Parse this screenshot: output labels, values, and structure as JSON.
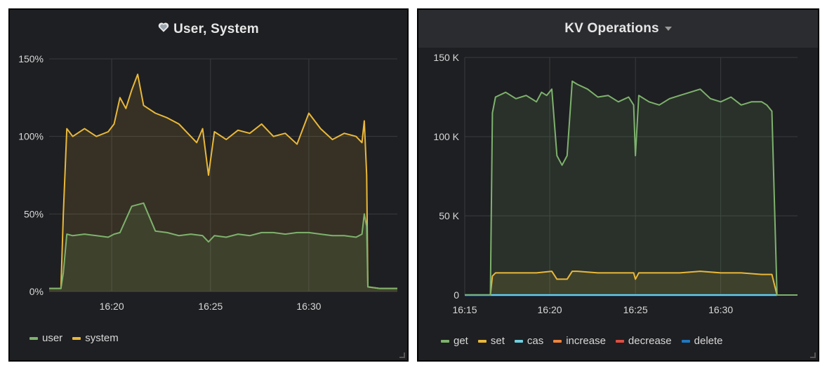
{
  "panels": {
    "left": {
      "title": "User, System",
      "legend": [
        {
          "name": "user",
          "color": "#7eb26d"
        },
        {
          "name": "system",
          "color": "#eab839"
        }
      ]
    },
    "right": {
      "title": "KV Operations",
      "legend": [
        {
          "name": "get",
          "color": "#7eb26d"
        },
        {
          "name": "set",
          "color": "#eab839"
        },
        {
          "name": "cas",
          "color": "#6ed0e0"
        },
        {
          "name": "increase",
          "color": "#ef843c"
        },
        {
          "name": "decrease",
          "color": "#e24d42"
        },
        {
          "name": "delete",
          "color": "#1f78c1"
        }
      ]
    }
  },
  "chart_data": [
    {
      "type": "area",
      "title": "User, System",
      "x_unit": "minutes",
      "xlim": [
        16.28,
        16.575
      ],
      "ylim": [
        0,
        150
      ],
      "yticks": [
        "0%",
        "50%",
        "100%",
        "150%"
      ],
      "ytick_values": [
        0,
        50,
        100,
        150
      ],
      "xticks": [
        "16:20",
        "16:25",
        "16:30"
      ],
      "xtick_values": [
        16.333,
        16.4167,
        16.5
      ],
      "grid": true,
      "legend_position": "bottom-left",
      "series": [
        {
          "name": "user",
          "color": "#7eb26d",
          "x": [
            16.28,
            16.29,
            16.292,
            16.295,
            16.3,
            16.31,
            16.32,
            16.33,
            16.335,
            16.34,
            16.35,
            16.36,
            16.37,
            16.38,
            16.39,
            16.4,
            16.41,
            16.415,
            16.42,
            16.43,
            16.44,
            16.45,
            16.46,
            16.47,
            16.48,
            16.49,
            16.5,
            16.51,
            16.52,
            16.53,
            16.54,
            16.545,
            16.547,
            16.549,
            16.55,
            16.56,
            16.575
          ],
          "y": [
            2,
            2,
            12,
            37,
            36,
            37,
            36,
            35,
            37,
            38,
            55,
            57,
            39,
            38,
            36,
            37,
            36,
            32,
            36,
            35,
            37,
            36,
            38,
            38,
            37,
            38,
            38,
            37,
            36,
            36,
            35,
            37,
            50,
            42,
            3,
            2,
            2
          ]
        },
        {
          "name": "system",
          "color": "#eab839",
          "x": [
            16.28,
            16.29,
            16.292,
            16.295,
            16.3,
            16.31,
            16.32,
            16.33,
            16.335,
            16.34,
            16.345,
            16.35,
            16.355,
            16.36,
            16.37,
            16.38,
            16.39,
            16.4,
            16.405,
            16.41,
            16.415,
            16.42,
            16.43,
            16.44,
            16.45,
            16.46,
            16.47,
            16.48,
            16.49,
            16.5,
            16.51,
            16.52,
            16.53,
            16.54,
            16.545,
            16.547,
            16.549,
            16.55,
            16.56,
            16.575
          ],
          "y": [
            2,
            2,
            50,
            105,
            100,
            105,
            100,
            103,
            108,
            125,
            118,
            130,
            140,
            120,
            115,
            112,
            108,
            100,
            96,
            105,
            75,
            103,
            98,
            104,
            102,
            108,
            100,
            102,
            95,
            115,
            105,
            98,
            102,
            100,
            96,
            110,
            75,
            3,
            2,
            2
          ]
        }
      ]
    },
    {
      "type": "area",
      "title": "KV Operations",
      "x_unit": "minutes",
      "xlim": [
        16.25,
        16.575
      ],
      "ylim": [
        0,
        150000
      ],
      "yticks": [
        "0",
        "50 K",
        "100 K",
        "150 K"
      ],
      "ytick_values": [
        0,
        50000,
        100000,
        150000
      ],
      "xticks": [
        "16:15",
        "16:20",
        "16:25",
        "16:30"
      ],
      "xtick_values": [
        16.25,
        16.333,
        16.4167,
        16.5
      ],
      "grid": true,
      "legend_position": "bottom-left",
      "series": [
        {
          "name": "get",
          "color": "#7eb26d",
          "x": [
            16.25,
            16.275,
            16.277,
            16.28,
            16.29,
            16.3,
            16.31,
            16.32,
            16.325,
            16.33,
            16.335,
            16.34,
            16.345,
            16.35,
            16.355,
            16.36,
            16.37,
            16.38,
            16.39,
            16.4,
            16.41,
            16.415,
            16.4167,
            16.42,
            16.43,
            16.44,
            16.45,
            16.46,
            16.47,
            16.48,
            16.49,
            16.5,
            16.51,
            16.52,
            16.53,
            16.54,
            16.545,
            16.55,
            16.555,
            16.575
          ],
          "y": [
            0,
            0,
            115000,
            125000,
            128000,
            124000,
            126000,
            122000,
            128000,
            126000,
            130000,
            88000,
            82000,
            88000,
            135000,
            133000,
            130000,
            125000,
            126000,
            122000,
            125000,
            120000,
            88000,
            126000,
            122000,
            120000,
            124000,
            126000,
            128000,
            130000,
            124000,
            122000,
            125000,
            120000,
            122000,
            122000,
            120000,
            116000,
            0,
            0
          ]
        },
        {
          "name": "set",
          "color": "#eab839",
          "x": [
            16.25,
            16.275,
            16.277,
            16.28,
            16.3,
            16.32,
            16.335,
            16.34,
            16.345,
            16.35,
            16.355,
            16.36,
            16.38,
            16.4,
            16.415,
            16.4167,
            16.42,
            16.44,
            16.46,
            16.48,
            16.5,
            16.52,
            16.54,
            16.55,
            16.555,
            16.575
          ],
          "y": [
            0,
            0,
            12000,
            14000,
            14000,
            14000,
            15000,
            10000,
            10000,
            10000,
            15000,
            15000,
            14000,
            14000,
            14000,
            10000,
            14000,
            14000,
            14000,
            15000,
            14000,
            14000,
            13000,
            13000,
            0,
            0
          ]
        },
        {
          "name": "cas",
          "color": "#6ed0e0",
          "x": [
            16.25,
            16.555
          ],
          "y": [
            0,
            0
          ]
        },
        {
          "name": "increase",
          "color": "#ef843c",
          "x": [
            16.25,
            16.555
          ],
          "y": [
            0,
            0
          ]
        },
        {
          "name": "decrease",
          "color": "#e24d42",
          "x": [
            16.25,
            16.555
          ],
          "y": [
            0,
            0
          ]
        },
        {
          "name": "delete",
          "color": "#1f78c1",
          "x": [
            16.25,
            16.555
          ],
          "y": [
            0,
            0
          ]
        }
      ]
    }
  ]
}
